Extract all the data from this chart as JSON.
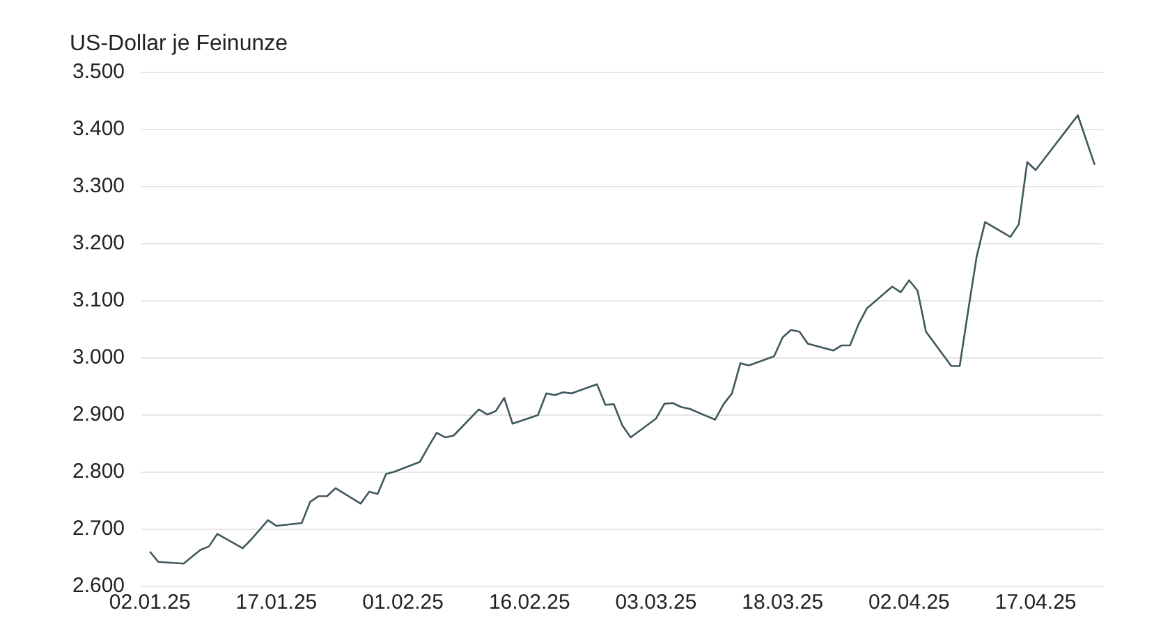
{
  "chart_data": {
    "type": "line",
    "ylabel": "US-Dollar je Feinunze",
    "x": [
      "--01-02",
      "--01-03",
      "--01-06",
      "--01-07",
      "--01-08",
      "--01-09",
      "--01-10",
      "--01-13",
      "--01-14",
      "--01-15",
      "--01-16",
      "--01-17",
      "--01-20",
      "--01-21",
      "--01-22",
      "--01-23",
      "--01-24",
      "--01-27",
      "--01-28",
      "--01-29",
      "--01-30",
      "--01-31",
      "--02-03",
      "--02-04",
      "--02-05",
      "--02-06",
      "--02-07",
      "--02-10",
      "--02-11",
      "--02-12",
      "--02-13",
      "--02-14",
      "--02-17",
      "--02-18",
      "--02-19",
      "--02-20",
      "--02-21",
      "--02-24",
      "--02-25",
      "--02-26",
      "--02-27",
      "--02-28",
      "--03-03",
      "--03-04",
      "--03-05",
      "--03-06",
      "--03-07",
      "--03-10",
      "--03-11",
      "--03-12",
      "--03-13",
      "--03-14",
      "--03-17",
      "--03-18",
      "--03-19",
      "--03-20",
      "--03-21",
      "--03-24",
      "--03-25",
      "--03-26",
      "--03-27",
      "--03-28",
      "--03-31",
      "--04-01",
      "--04-02",
      "--04-03",
      "--04-04",
      "--04-07",
      "--04-08",
      "--04-09",
      "--04-10",
      "--04-11",
      "--04-14",
      "--04-15",
      "--04-16",
      "--04-17",
      "--04-22",
      "--04-24"
    ],
    "series": [
      {
        "color": "#3f585c",
        "values": [
          2661,
          2643,
          2640,
          2652,
          2664,
          2670,
          2692,
          2667,
          2682,
          2699,
          2716,
          2706,
          2711,
          2748,
          2758,
          2758,
          2772,
          2745,
          2766,
          2762,
          2797,
          2801,
          2818,
          2844,
          2869,
          2861,
          2864,
          2910,
          2901,
          2907,
          2930,
          2885,
          2900,
          2938,
          2935,
          2940,
          2938,
          2954,
          2918,
          2919,
          2882,
          2861,
          2894,
          2920,
          2921,
          2914,
          2911,
          2892,
          2919,
          2938,
          2991,
          2987,
          3003,
          3036,
          3049,
          3046,
          3025,
          3013,
          3022,
          3022,
          3059,
          3087,
          3125,
          3115,
          3136,
          3118,
          3046,
          2986,
          2986,
          3083,
          3177,
          3238,
          3212,
          3234,
          3343,
          3329,
          3425,
          3338
        ]
      }
    ],
    "xlim": [
      "--01-01",
      "--04-25"
    ],
    "xticks": [
      {
        "value": "--01-02",
        "label": "02.01.25"
      },
      {
        "value": "--01-17",
        "label": "17.01.25"
      },
      {
        "value": "--02-01",
        "label": "01.02.25"
      },
      {
        "value": "--02-16",
        "label": "16.02.25"
      },
      {
        "value": "--03-03",
        "label": "03.03.25"
      },
      {
        "value": "--03-18",
        "label": "18.03.25"
      },
      {
        "value": "--04-02",
        "label": "02.04.25"
      },
      {
        "value": "--04-17",
        "label": "17.04.25"
      }
    ],
    "ylim": [
      2600,
      3500
    ],
    "yticks": [
      {
        "value": 2600,
        "label": "2.600"
      },
      {
        "value": 2700,
        "label": "2.700"
      },
      {
        "value": 2800,
        "label": "2.800"
      },
      {
        "value": 2900,
        "label": "2.900"
      },
      {
        "value": 3000,
        "label": "3.000"
      },
      {
        "value": 3100,
        "label": "3.100"
      },
      {
        "value": 3200,
        "label": "3.200"
      },
      {
        "value": 3300,
        "label": "3.300"
      },
      {
        "value": 3400,
        "label": "3.400"
      },
      {
        "value": 3500,
        "label": "3.500"
      }
    ],
    "grid": "y",
    "legend": false,
    "marker": "none",
    "line_style": "solid"
  }
}
